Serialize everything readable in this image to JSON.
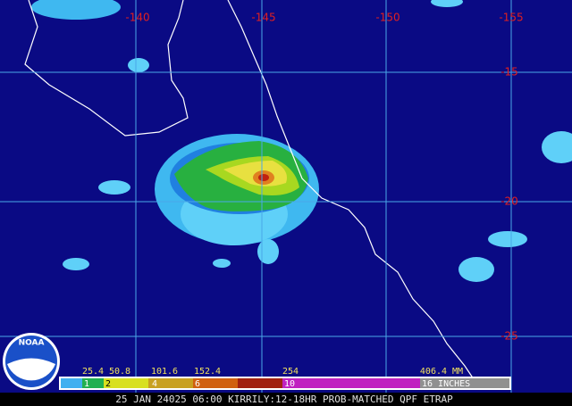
{
  "map": {
    "longitude_labels": [
      "-140",
      "-145",
      "-150",
      "-155"
    ],
    "latitude_labels": [
      "-15",
      "-20",
      "-25"
    ],
    "legend": {
      "mm_labels": [
        "25.4",
        "50.8",
        "101.6",
        "152.4",
        "254",
        "406.4 MM"
      ],
      "inch_labels": [
        "1",
        "2",
        "4",
        "6",
        "10",
        "16 INCHES"
      ]
    },
    "caption": "25 JAN 24025 06:00 KIRRILY:12-18HR PROB-MATCHED QPF ETRAP",
    "logo": "NOAA"
  }
}
